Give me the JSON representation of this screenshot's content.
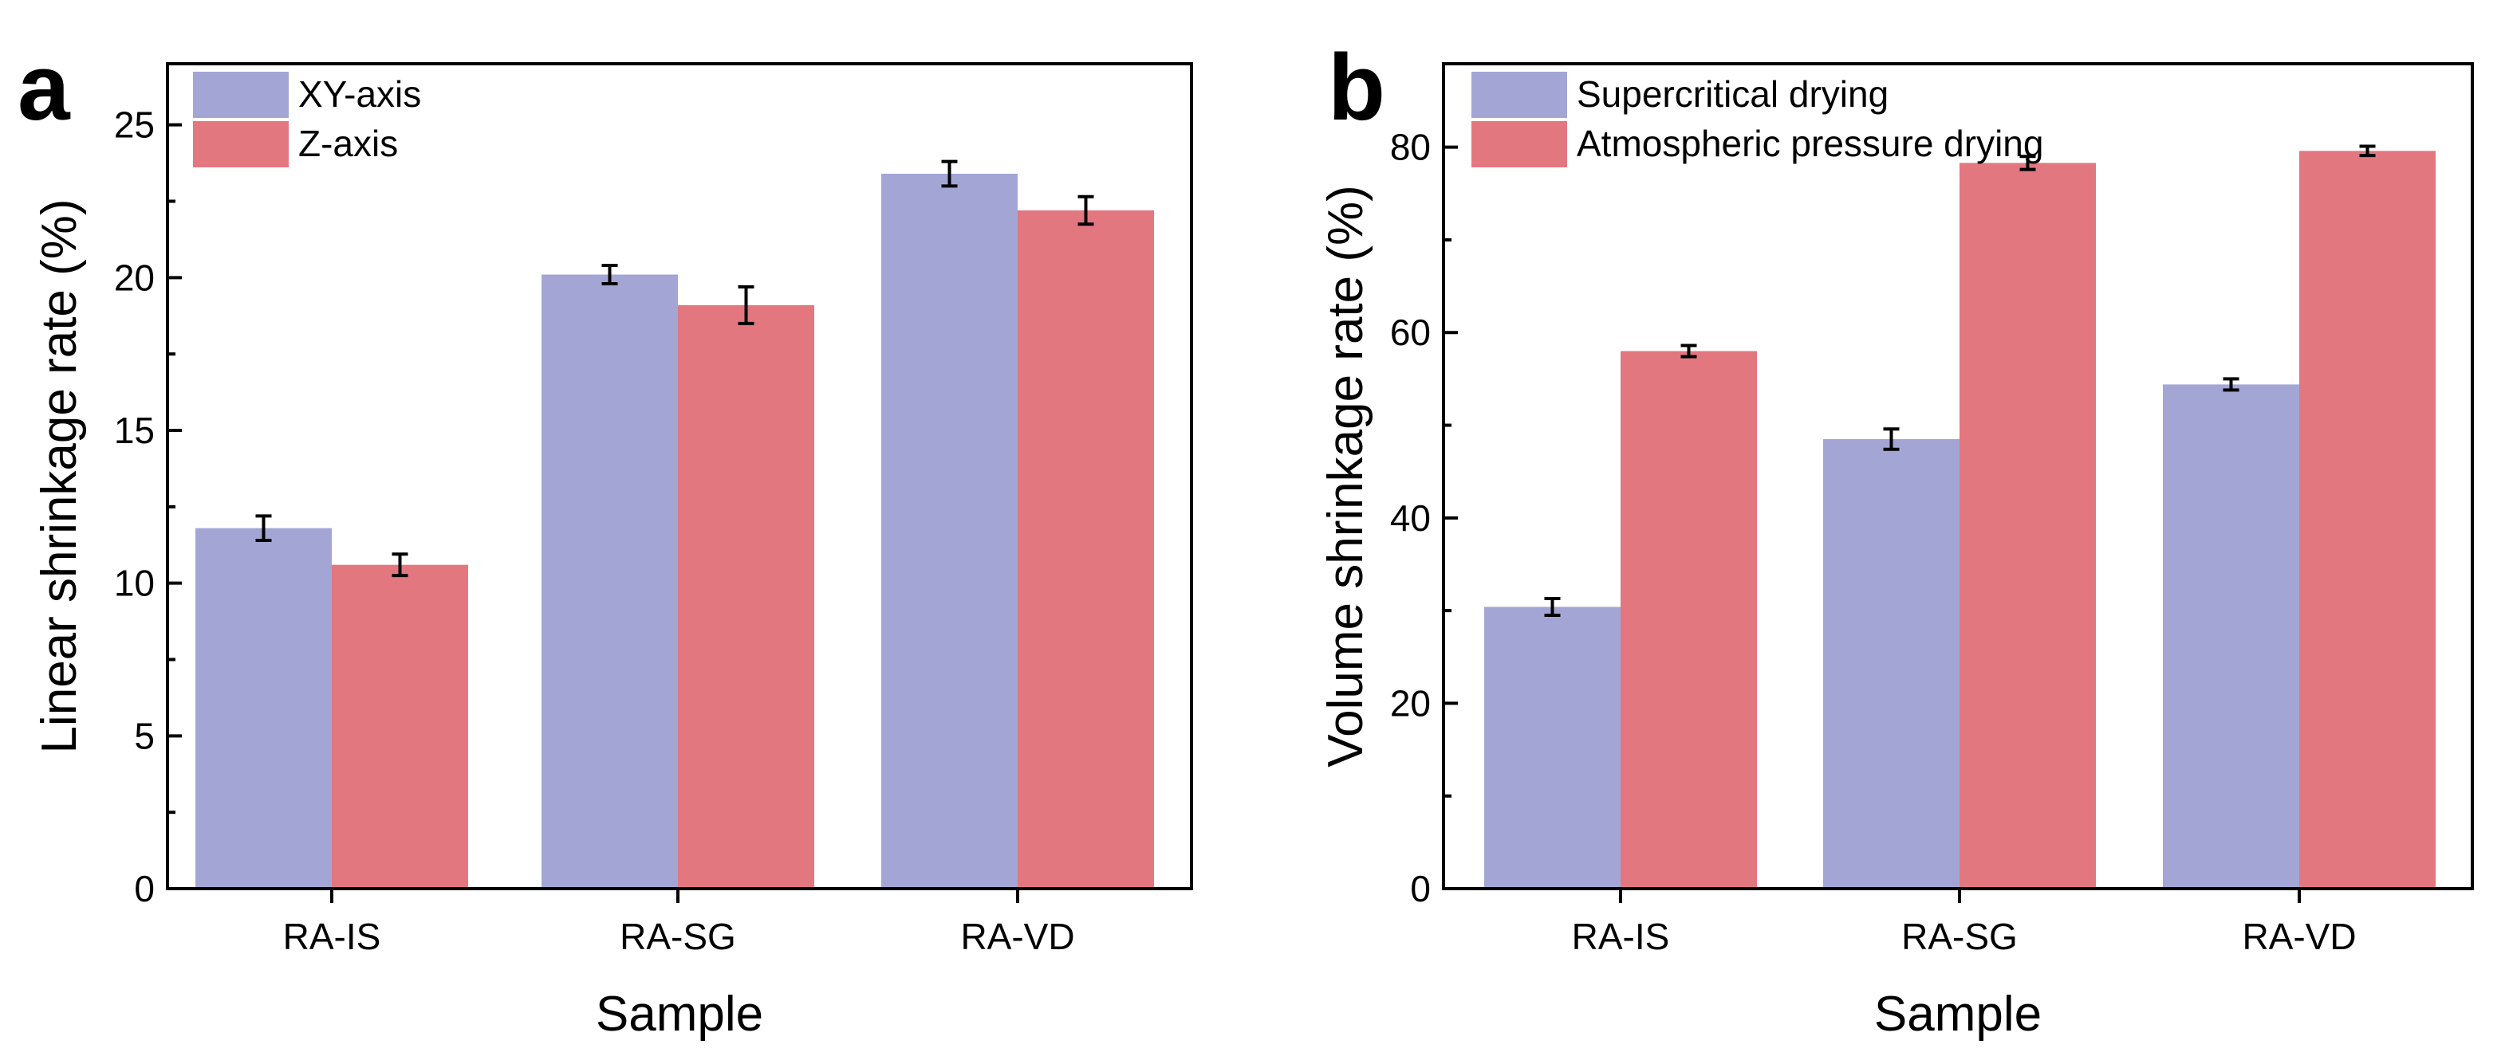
{
  "chart_data": [
    {
      "panel_label": "a",
      "type": "bar",
      "categories": [
        "RA-IS",
        "RA-SG",
        "RA-VD"
      ],
      "series": [
        {
          "name": "XY-axis",
          "color": "#a3a6d5",
          "values": [
            11.8,
            20.1,
            23.4
          ],
          "errors": [
            0.4,
            0.3,
            0.4
          ]
        },
        {
          "name": "Z-axis",
          "color": "#e27780",
          "values": [
            10.6,
            19.1,
            22.2
          ],
          "errors": [
            0.35,
            0.6,
            0.45
          ]
        }
      ],
      "xlabel": "Sample",
      "ylabel": "Linear shrinkage rate (%)",
      "ylim": [
        0,
        27
      ],
      "yticks": [
        0,
        5,
        10,
        15,
        20,
        25
      ],
      "minor_step": 2.5,
      "legend": "top-left"
    },
    {
      "panel_label": "b",
      "type": "bar",
      "categories": [
        "RA-IS",
        "RA-SG",
        "RA-VD"
      ],
      "series": [
        {
          "name": "Supercritical drying",
          "color": "#a3a6d5",
          "values": [
            30.4,
            48.5,
            54.4
          ],
          "errors": [
            0.9,
            1.1,
            0.6
          ]
        },
        {
          "name": "Atmospheric pressure drying",
          "color": "#e27780",
          "values": [
            58.0,
            78.3,
            79.6
          ],
          "errors": [
            0.6,
            0.7,
            0.5
          ]
        }
      ],
      "xlabel": "Sample",
      "ylabel": "Volume shrinkage rate (%)",
      "ylim": [
        0,
        89
      ],
      "yticks": [
        0,
        20,
        40,
        60,
        80
      ],
      "minor_step": 10,
      "legend": "top-left"
    }
  ]
}
